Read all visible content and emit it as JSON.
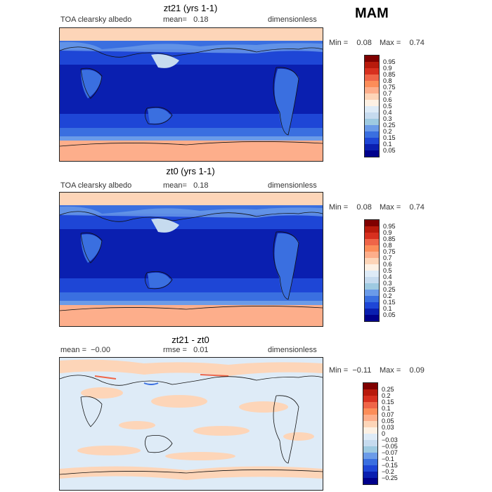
{
  "season": "MAM",
  "panels": [
    {
      "title": "zt21 (yrs 1-1)",
      "left_text": "TOA clearsky albedo",
      "mid_text": "mean=   0.18",
      "right_text": "dimensionless",
      "min_text": "Min =    0.08",
      "max_text": "Max =    0.74",
      "colorbar": {
        "labels": [
          "0.95",
          "0.9",
          "0.85",
          "0.8",
          "0.75",
          "0.7",
          "0.6",
          "0.5",
          "0.4",
          "0.3",
          "0.25",
          "0.2",
          "0.15",
          "0.1",
          "0.05"
        ],
        "colors": [
          "#7f0000",
          "#b81a0c",
          "#d7301f",
          "#ef6548",
          "#fc8d59",
          "#fdae8b",
          "#fdd5b8",
          "#fdf1e4",
          "#deebf7",
          "#c6dbef",
          "#9ecae1",
          "#6b9be8",
          "#3a6fe0",
          "#1e46d6",
          "#0a1fb0",
          "#00008b"
        ]
      }
    },
    {
      "title": "zt0 (yrs 1-1)",
      "left_text": "TOA clearsky albedo",
      "mid_text": "mean=   0.18",
      "right_text": "dimensionless",
      "min_text": "Min =    0.08",
      "max_text": "Max =    0.74",
      "colorbar": {
        "labels": [
          "0.95",
          "0.9",
          "0.85",
          "0.8",
          "0.75",
          "0.7",
          "0.6",
          "0.5",
          "0.4",
          "0.3",
          "0.25",
          "0.2",
          "0.15",
          "0.1",
          "0.05"
        ],
        "colors": [
          "#7f0000",
          "#b81a0c",
          "#d7301f",
          "#ef6548",
          "#fc8d59",
          "#fdae8b",
          "#fdd5b8",
          "#fdf1e4",
          "#deebf7",
          "#c6dbef",
          "#9ecae1",
          "#6b9be8",
          "#3a6fe0",
          "#1e46d6",
          "#0a1fb0",
          "#00008b"
        ]
      }
    },
    {
      "title": "zt21 - zt0",
      "left_text": "mean =  −0.00",
      "mid_text": "rmse =   0.01",
      "right_text": "dimensionless",
      "min_text": "Min =  −0.11",
      "max_text": "Max =    0.09",
      "colorbar": {
        "labels": [
          "0.25",
          "0.2",
          "0.15",
          "0.1",
          "0.07",
          "0.05",
          "0.03",
          "0",
          "−0.03",
          "−0.05",
          "−0.07",
          "−0.1",
          "−0.15",
          "−0.2",
          "−0.25"
        ],
        "colors": [
          "#7f0000",
          "#b81a0c",
          "#d7301f",
          "#ef6548",
          "#fc8d59",
          "#fdae8b",
          "#fdd5b8",
          "#fdf1e4",
          "#deebf7",
          "#c6dbef",
          "#9ecae1",
          "#6b9be8",
          "#3a6fe0",
          "#1e46d6",
          "#0a1fb0",
          "#00008b"
        ]
      }
    }
  ]
}
